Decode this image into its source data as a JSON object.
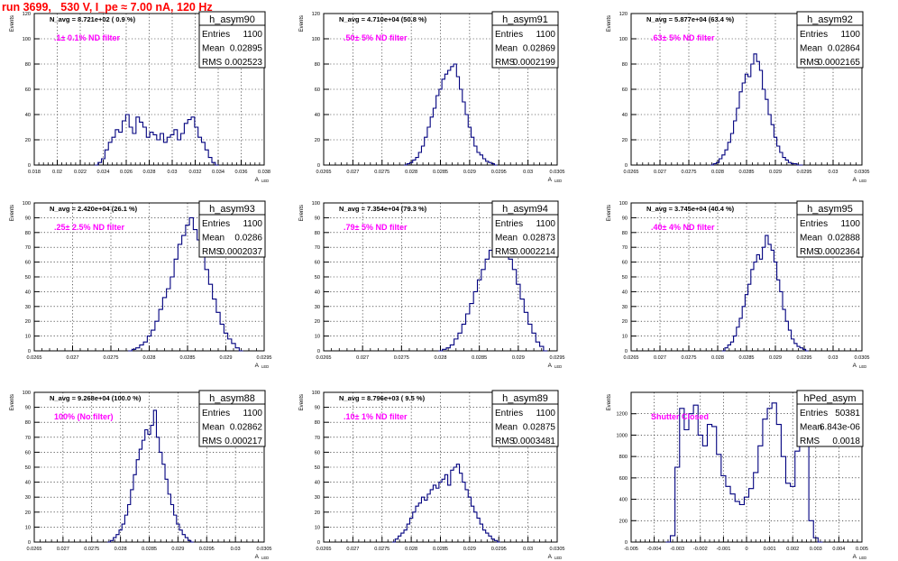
{
  "page_title": "run 3699,   530 V, I_pe ≈ 7.00 nA, 120 Hz",
  "colors": {
    "line": "#00007f",
    "annotation": "#ff00ff",
    "title": "#ff0000",
    "grid": "#000000"
  },
  "chart_data": [
    {
      "type": "histogram",
      "name": "h_asym90",
      "xlabel": "A_LED",
      "ylabel": "Events",
      "xlim": [
        0.018,
        0.038
      ],
      "ylim": [
        0,
        120
      ],
      "xticks": [
        "0.018",
        "0.02",
        "0.022",
        "0.024",
        "0.026",
        "0.028",
        "0.03",
        "0.032",
        "0.034",
        "0.036",
        "0.038"
      ],
      "yticks": [
        "0",
        "20",
        "40",
        "60",
        "80",
        "100",
        "120"
      ],
      "stats": {
        "entries": "1100",
        "mean": "0.02895",
        "rms": "0.002523"
      },
      "nav": "N_avg = 8.721e+02 ( 0.9 %)",
      "note": ".1± 0.1% ND filter",
      "grid": true,
      "x": [
        0.0234,
        0.0237,
        0.024,
        0.0243,
        0.0246,
        0.0249,
        0.0252,
        0.0255,
        0.0258,
        0.0261,
        0.0264,
        0.0267,
        0.027,
        0.0273,
        0.0276,
        0.0279,
        0.0282,
        0.0285,
        0.0288,
        0.0291,
        0.0294,
        0.0297,
        0.03,
        0.0303,
        0.0306,
        0.0309,
        0.0312,
        0.0315,
        0.0318,
        0.0321,
        0.0324,
        0.0327,
        0.033,
        0.0333,
        0.0336,
        0.0339
      ],
      "values": [
        0,
        2,
        5,
        12,
        18,
        22,
        28,
        26,
        35,
        40,
        30,
        25,
        38,
        34,
        30,
        22,
        26,
        24,
        20,
        25,
        18,
        22,
        24,
        28,
        20,
        25,
        33,
        36,
        38,
        30,
        22,
        18,
        12,
        6,
        2,
        0
      ]
    },
    {
      "type": "histogram",
      "name": "h_asym91",
      "xlabel": "A_LED",
      "ylabel": "Events",
      "xlim": [
        0.0265,
        0.0305
      ],
      "ylim": [
        0,
        120
      ],
      "xticks": [
        "0.0265",
        "0.027",
        "0.0275",
        "0.028",
        "0.0285",
        "0.029",
        "0.0295",
        "0.03",
        "0.0305"
      ],
      "yticks": [
        "0",
        "20",
        "40",
        "60",
        "80",
        "100",
        "120"
      ],
      "stats": {
        "entries": "1100",
        "mean": "0.02869",
        "rms": "0.0002199"
      },
      "nav": "N_avg = 4.710e+04 (50.8 %)",
      "note": ".50± 5% ND filter",
      "grid": true,
      "x": [
        0.0279,
        0.02795,
        0.028,
        0.02805,
        0.0281,
        0.02815,
        0.0282,
        0.02825,
        0.0283,
        0.02835,
        0.0284,
        0.02845,
        0.0285,
        0.02855,
        0.0286,
        0.02865,
        0.0287,
        0.02875,
        0.0288,
        0.02885,
        0.0289,
        0.02895,
        0.029,
        0.02905,
        0.0291,
        0.02915,
        0.0292,
        0.02925,
        0.0293,
        0.02935,
        0.0294,
        0.02945
      ],
      "values": [
        0,
        1,
        2,
        4,
        6,
        10,
        15,
        22,
        30,
        38,
        45,
        55,
        60,
        68,
        72,
        75,
        78,
        80,
        70,
        60,
        50,
        40,
        30,
        22,
        15,
        10,
        8,
        5,
        3,
        2,
        1,
        0
      ]
    },
    {
      "type": "histogram",
      "name": "h_asym92",
      "xlabel": "A_LED",
      "ylabel": "Events",
      "xlim": [
        0.0265,
        0.0305
      ],
      "ylim": [
        0,
        120
      ],
      "xticks": [
        "0.0265",
        "0.027",
        "0.0275",
        "0.028",
        "0.0285",
        "0.029",
        "0.0295",
        "0.03",
        "0.0305"
      ],
      "yticks": [
        "0",
        "20",
        "40",
        "60",
        "80",
        "100",
        "120"
      ],
      "stats": {
        "entries": "1100",
        "mean": "0.02864",
        "rms": "0.0002165"
      },
      "nav": "N_avg = 5.877e+04 (63.4 %)",
      "note": ".63± 5% ND filter",
      "grid": true,
      "x": [
        0.0279,
        0.02795,
        0.028,
        0.02805,
        0.0281,
        0.02815,
        0.0282,
        0.02825,
        0.0283,
        0.02835,
        0.0284,
        0.02845,
        0.0285,
        0.02855,
        0.0286,
        0.02865,
        0.0287,
        0.02875,
        0.0288,
        0.02885,
        0.0289,
        0.02895,
        0.029,
        0.02905,
        0.0291,
        0.02915,
        0.0292,
        0.02925,
        0.0293,
        0.02935,
        0.0294,
        0.02945
      ],
      "values": [
        0,
        1,
        2,
        5,
        8,
        12,
        18,
        25,
        35,
        45,
        58,
        65,
        72,
        70,
        80,
        88,
        82,
        75,
        60,
        52,
        40,
        32,
        22,
        15,
        10,
        6,
        4,
        2,
        1,
        1,
        0,
        0
      ]
    },
    {
      "type": "histogram",
      "name": "h_asym93",
      "xlabel": "A_LED",
      "ylabel": "Events",
      "xlim": [
        0.0265,
        0.0295
      ],
      "ylim": [
        0,
        100
      ],
      "xticks": [
        "0.0265",
        "0.027",
        "0.0275",
        "0.028",
        "0.0285",
        "0.029",
        "0.0295"
      ],
      "yticks": [
        "0",
        "10",
        "20",
        "30",
        "40",
        "50",
        "60",
        "70",
        "80",
        "90",
        "100"
      ],
      "stats": {
        "entries": "1100",
        "mean": "0.0286",
        "rms": "0.0002037"
      },
      "nav": "N_avg = 2.420e+04 (26.1 %)",
      "note": ".25± 2.5% ND filter",
      "grid": true,
      "x": [
        0.02775,
        0.0278,
        0.02785,
        0.0279,
        0.02795,
        0.028,
        0.02805,
        0.0281,
        0.02815,
        0.0282,
        0.02825,
        0.0283,
        0.02835,
        0.0284,
        0.02845,
        0.0285,
        0.02855,
        0.0286,
        0.02865,
        0.0287,
        0.02875,
        0.0288,
        0.02885,
        0.0289,
        0.02895,
        0.029,
        0.02905,
        0.0291,
        0.02915,
        0.0292
      ],
      "values": [
        0,
        1,
        2,
        4,
        6,
        10,
        14,
        20,
        28,
        36,
        42,
        50,
        62,
        72,
        78,
        85,
        90,
        82,
        75,
        66,
        55,
        45,
        35,
        26,
        18,
        12,
        8,
        5,
        2,
        0
      ]
    },
    {
      "type": "histogram",
      "name": "h_asym94",
      "xlabel": "A_LED",
      "ylabel": "Events",
      "xlim": [
        0.0265,
        0.0295
      ],
      "ylim": [
        0,
        100
      ],
      "xticks": [
        "0.0265",
        "0.027",
        "0.0275",
        "0.028",
        "0.0285",
        "0.029",
        "0.0295"
      ],
      "yticks": [
        "0",
        "10",
        "20",
        "30",
        "40",
        "50",
        "60",
        "70",
        "80",
        "90",
        "100"
      ],
      "stats": {
        "entries": "1100",
        "mean": "0.02873",
        "rms": "0.0002214"
      },
      "nav": "N_avg = 7.354e+04 (79.3 %)",
      "note": ".79± 5% ND filter",
      "grid": true,
      "x": [
        0.028,
        0.02805,
        0.0281,
        0.02815,
        0.0282,
        0.02825,
        0.0283,
        0.02835,
        0.0284,
        0.02845,
        0.0285,
        0.02855,
        0.0286,
        0.02865,
        0.0287,
        0.02875,
        0.0288,
        0.02885,
        0.0289,
        0.02895,
        0.029,
        0.02905,
        0.0291,
        0.02915,
        0.0292,
        0.02925,
        0.0293,
        0.02935
      ],
      "values": [
        0,
        1,
        2,
        4,
        8,
        12,
        18,
        25,
        32,
        40,
        48,
        55,
        62,
        68,
        72,
        78,
        75,
        70,
        62,
        55,
        45,
        35,
        26,
        18,
        12,
        6,
        3,
        0
      ]
    },
    {
      "type": "histogram",
      "name": "h_asym95",
      "xlabel": "A_LED",
      "ylabel": "Events",
      "xlim": [
        0.0265,
        0.0305
      ],
      "ylim": [
        0,
        100
      ],
      "xticks": [
        "0.0265",
        "0.027",
        "0.0275",
        "0.028",
        "0.0285",
        "0.029",
        "0.0295",
        "0.03",
        "0.0305"
      ],
      "yticks": [
        "0",
        "10",
        "20",
        "30",
        "40",
        "50",
        "60",
        "70",
        "80",
        "90",
        "100"
      ],
      "stats": {
        "entries": "1100",
        "mean": "0.02888",
        "rms": "0.0002364"
      },
      "nav": "N_avg = 3.745e+04 (40.4 %)",
      "note": ".40± 4% ND filter",
      "grid": true,
      "x": [
        0.0281,
        0.02815,
        0.0282,
        0.02825,
        0.0283,
        0.02835,
        0.0284,
        0.02845,
        0.0285,
        0.02855,
        0.0286,
        0.02865,
        0.0287,
        0.02875,
        0.0288,
        0.02885,
        0.0289,
        0.02895,
        0.029,
        0.02905,
        0.0291,
        0.02915,
        0.0292,
        0.02925,
        0.0293,
        0.02935,
        0.0294,
        0.02945,
        0.0295,
        0.02955
      ],
      "values": [
        0,
        2,
        4,
        6,
        10,
        16,
        22,
        30,
        38,
        45,
        55,
        60,
        65,
        62,
        70,
        78,
        72,
        68,
        60,
        48,
        40,
        28,
        20,
        14,
        8,
        5,
        3,
        2,
        1,
        0
      ]
    },
    {
      "type": "histogram",
      "name": "h_asym88",
      "xlabel": "A_LED",
      "ylabel": "Events",
      "xlim": [
        0.0265,
        0.0305
      ],
      "ylim": [
        0,
        100
      ],
      "xticks": [
        "0.0265",
        "0.027",
        "0.0275",
        "0.028",
        "0.0285",
        "0.029",
        "0.0295",
        "0.03",
        "0.0305"
      ],
      "yticks": [
        "0",
        "10",
        "20",
        "30",
        "40",
        "50",
        "60",
        "70",
        "80",
        "90",
        "100"
      ],
      "stats": {
        "entries": "1100",
        "mean": "0.02862",
        "rms": "0.000217"
      },
      "nav": "N_avg = 9.268e+04 (100.0 %)",
      "note": "100% (No filter)",
      "grid": true,
      "x": [
        0.0278,
        0.02785,
        0.0279,
        0.02795,
        0.028,
        0.02805,
        0.0281,
        0.02815,
        0.0282,
        0.02825,
        0.0283,
        0.02835,
        0.0284,
        0.02845,
        0.0285,
        0.02855,
        0.0286,
        0.02865,
        0.0287,
        0.02875,
        0.0288,
        0.02885,
        0.0289,
        0.02895,
        0.029,
        0.02905,
        0.0291,
        0.02915,
        0.0292,
        0.02925
      ],
      "values": [
        0,
        1,
        3,
        5,
        8,
        12,
        18,
        25,
        35,
        45,
        55,
        62,
        68,
        75,
        72,
        78,
        88,
        70,
        60,
        52,
        42,
        32,
        25,
        18,
        12,
        8,
        5,
        3,
        1,
        0
      ]
    },
    {
      "type": "histogram",
      "name": "h_asym89",
      "xlabel": "A_LED",
      "ylabel": "Events",
      "xlim": [
        0.0265,
        0.0305
      ],
      "ylim": [
        0,
        100
      ],
      "xticks": [
        "0.0265",
        "0.027",
        "0.0275",
        "0.028",
        "0.0285",
        "0.029",
        "0.0295",
        "0.03",
        "0.0305"
      ],
      "yticks": [
        "0",
        "10",
        "20",
        "30",
        "40",
        "50",
        "60",
        "70",
        "80",
        "90",
        "100"
      ],
      "stats": {
        "entries": "1100",
        "mean": "0.02875",
        "rms": "0.0003481"
      },
      "nav": "N_avg = 8.796e+03 ( 9.5 %)",
      "note": ".10± 1% ND filter",
      "grid": true,
      "x": [
        0.0277,
        0.02775,
        0.0278,
        0.02785,
        0.0279,
        0.02795,
        0.028,
        0.02805,
        0.0281,
        0.02815,
        0.0282,
        0.02825,
        0.0283,
        0.02835,
        0.0284,
        0.02845,
        0.0285,
        0.02855,
        0.0286,
        0.02865,
        0.0287,
        0.02875,
        0.0288,
        0.02885,
        0.0289,
        0.02895,
        0.029,
        0.02905,
        0.0291,
        0.02915,
        0.0292,
        0.02925,
        0.0293,
        0.02935,
        0.0294,
        0.02945,
        0.0295
      ],
      "values": [
        0,
        2,
        4,
        6,
        8,
        12,
        16,
        20,
        24,
        26,
        30,
        28,
        32,
        35,
        38,
        36,
        40,
        42,
        45,
        38,
        48,
        50,
        52,
        46,
        40,
        35,
        30,
        24,
        20,
        16,
        12,
        8,
        6,
        4,
        2,
        1,
        0
      ]
    },
    {
      "type": "histogram",
      "name": "hPed_asym",
      "xlabel": "A_LED",
      "ylabel": "Events",
      "xlim": [
        -0.005,
        0.005
      ],
      "ylim": [
        0,
        1400
      ],
      "xticks": [
        "-0.005",
        "-0.004",
        "-0.003",
        "-0.002",
        "-0.001",
        "0",
        "0.001",
        "0.002",
        "0.003",
        "0.004",
        "0.005"
      ],
      "yticks": [
        "0",
        "200",
        "400",
        "600",
        "800",
        "1000",
        "1200"
      ],
      "stats": {
        "entries": "50381",
        "mean": "6.843e-06",
        "rms": "0.0018"
      },
      "nav": "",
      "note": "Shutter Closed",
      "grid": true,
      "x": [
        -0.0034,
        -0.0032,
        -0.003,
        -0.0028,
        -0.0026,
        -0.0024,
        -0.0022,
        -0.002,
        -0.0018,
        -0.0016,
        -0.0014,
        -0.0012,
        -0.001,
        -0.0008,
        -0.0006,
        -0.0004,
        -0.0002,
        0,
        0.0002,
        0.0004,
        0.0006,
        0.0008,
        0.001,
        0.0012,
        0.0014,
        0.0016,
        0.0018,
        0.002,
        0.0022,
        0.0024,
        0.0026,
        0.0028,
        0.003,
        0.0032
      ],
      "values": [
        0,
        60,
        700,
        1250,
        1050,
        1200,
        1280,
        1000,
        900,
        1100,
        1080,
        820,
        620,
        520,
        450,
        380,
        350,
        420,
        500,
        650,
        900,
        1150,
        1250,
        1300,
        1100,
        800,
        550,
        520,
        850,
        1100,
        950,
        200,
        40,
        0
      ]
    }
  ]
}
